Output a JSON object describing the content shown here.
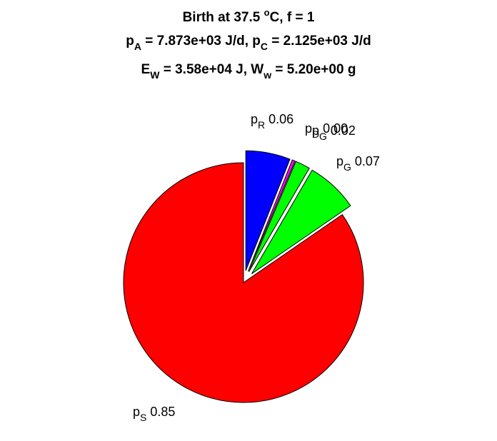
{
  "chart_data": {
    "type": "pie",
    "title_lines": [
      {
        "parts": [
          {
            "t": "Birth at 37.5 "
          },
          {
            "t": "o",
            "sup": true
          },
          {
            "t": "C, f = 1"
          }
        ]
      },
      {
        "parts": [
          {
            "t": "p"
          },
          {
            "t": "A",
            "sub": true
          },
          {
            "t": " = 7.873e+03 J/d, p"
          },
          {
            "t": "C",
            "sub": true
          },
          {
            "t": " = 2.125e+03 J/d"
          }
        ]
      },
      {
        "parts": [
          {
            "t": "E"
          },
          {
            "t": "W",
            "sub": true
          },
          {
            "t": " = 3.58e+04 J, W"
          },
          {
            "t": "w",
            "sub": true
          },
          {
            "t": " = 5.20e+00 g"
          }
        ]
      }
    ],
    "slices": [
      {
        "sym": "p",
        "sub": "R",
        "value": 0.06,
        "label": "0.06",
        "color": "#0000ff",
        "exploded": true
      },
      {
        "sym": "p",
        "sub": "D",
        "value": 0.004,
        "label": "0.00",
        "color": "#ff00ff",
        "exploded": true
      },
      {
        "sym": "p",
        "sub": "G",
        "value": 0.02,
        "label": "0.02",
        "color": "#00ff00",
        "exploded": true
      },
      {
        "sym": "p",
        "sub": "G",
        "value": 0.07,
        "label": "0.07",
        "color": "#00ff00",
        "exploded": true
      },
      {
        "sym": "p",
        "sub": "S",
        "value": 0.846,
        "label": "0.85",
        "color": "#ff0000",
        "exploded": false
      }
    ],
    "start_angle_deg": 90,
    "direction": "clockwise"
  }
}
